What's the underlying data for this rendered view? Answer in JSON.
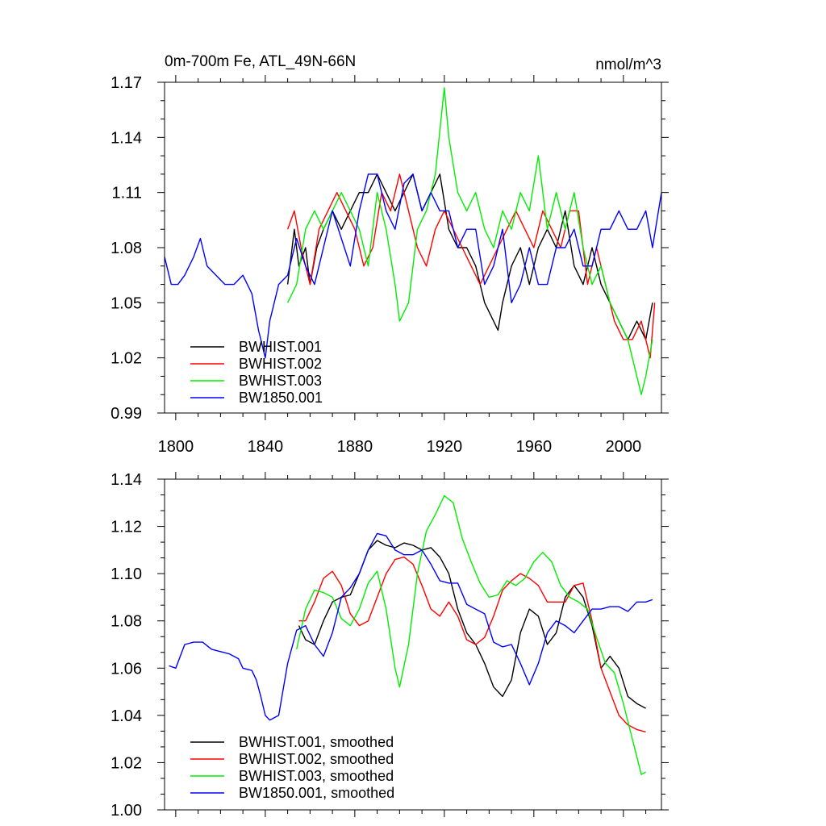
{
  "chart_data": [
    {
      "type": "line",
      "title": "0m-700m Fe, ATL_49N-66N",
      "units": "nmol/m^3",
      "xlim": [
        1795,
        2017
      ],
      "ylim": [
        0.99,
        1.17
      ],
      "xticks": [
        1800,
        1840,
        1880,
        1920,
        1960,
        2000
      ],
      "xtick_labels": [
        "1800",
        "1840",
        "1880",
        "1920",
        "1960",
        "2000"
      ],
      "yticks": [
        0.99,
        1.02,
        1.05,
        1.08,
        1.11,
        1.14,
        1.17
      ],
      "ytick_labels": [
        "0.99",
        "1.02",
        "1.05",
        "1.08",
        "1.11",
        "1.14",
        "1.17"
      ],
      "legend_position": "bottom-left",
      "series": [
        {
          "name": "BWHIST.001",
          "color": "#000000",
          "x": [
            1850,
            1853,
            1855,
            1858,
            1860,
            1863,
            1866,
            1870,
            1874,
            1878,
            1882,
            1886,
            1890,
            1894,
            1898,
            1902,
            1906,
            1910,
            1914,
            1918,
            1922,
            1926,
            1930,
            1934,
            1938,
            1942,
            1944,
            1946,
            1950,
            1954,
            1958,
            1962,
            1966,
            1970,
            1974,
            1978,
            1982,
            1986,
            1990,
            1994,
            1998,
            2002,
            2006,
            2010,
            2013
          ],
          "y": [
            1.06,
            1.09,
            1.07,
            1.08,
            1.06,
            1.08,
            1.09,
            1.1,
            1.09,
            1.1,
            1.11,
            1.11,
            1.12,
            1.11,
            1.1,
            1.11,
            1.12,
            1.1,
            1.11,
            1.12,
            1.09,
            1.08,
            1.08,
            1.07,
            1.05,
            1.04,
            1.035,
            1.05,
            1.07,
            1.08,
            1.06,
            1.08,
            1.09,
            1.08,
            1.1,
            1.07,
            1.06,
            1.08,
            1.06,
            1.05,
            1.04,
            1.03,
            1.04,
            1.03,
            1.05
          ]
        },
        {
          "name": "BWHIST.002",
          "color": "#ff0000",
          "x": [
            1850,
            1853,
            1856,
            1860,
            1864,
            1868,
            1872,
            1876,
            1880,
            1884,
            1888,
            1892,
            1896,
            1900,
            1904,
            1908,
            1912,
            1916,
            1920,
            1924,
            1928,
            1932,
            1936,
            1940,
            1944,
            1948,
            1952,
            1956,
            1960,
            1964,
            1968,
            1972,
            1976,
            1980,
            1984,
            1988,
            1992,
            1996,
            2000,
            2004,
            2008,
            2012,
            2014
          ],
          "y": [
            1.09,
            1.1,
            1.08,
            1.06,
            1.09,
            1.1,
            1.11,
            1.1,
            1.09,
            1.07,
            1.08,
            1.11,
            1.1,
            1.12,
            1.1,
            1.08,
            1.07,
            1.09,
            1.1,
            1.09,
            1.08,
            1.07,
            1.06,
            1.07,
            1.08,
            1.09,
            1.1,
            1.09,
            1.08,
            1.1,
            1.09,
            1.08,
            1.1,
            1.1,
            1.06,
            1.08,
            1.06,
            1.04,
            1.03,
            1.03,
            1.04,
            1.02,
            1.05
          ]
        },
        {
          "name": "BWHIST.003",
          "color": "#00ee00",
          "x": [
            1850,
            1854,
            1858,
            1862,
            1866,
            1870,
            1874,
            1878,
            1882,
            1886,
            1890,
            1894,
            1898,
            1900,
            1904,
            1908,
            1912,
            1916,
            1920,
            1922,
            1926,
            1930,
            1934,
            1938,
            1942,
            1946,
            1950,
            1954,
            1958,
            1962,
            1966,
            1970,
            1974,
            1978,
            1982,
            1986,
            1990,
            1994,
            1998,
            2002,
            2006,
            2008,
            2010,
            2013
          ],
          "y": [
            1.05,
            1.06,
            1.09,
            1.1,
            1.09,
            1.1,
            1.11,
            1.1,
            1.09,
            1.07,
            1.11,
            1.09,
            1.06,
            1.04,
            1.05,
            1.09,
            1.1,
            1.12,
            1.167,
            1.14,
            1.11,
            1.1,
            1.11,
            1.09,
            1.08,
            1.1,
            1.09,
            1.11,
            1.1,
            1.13,
            1.09,
            1.11,
            1.09,
            1.11,
            1.08,
            1.06,
            1.07,
            1.05,
            1.04,
            1.03,
            1.01,
            1.0,
            1.01,
            1.03
          ]
        },
        {
          "name": "BW1850.001",
          "color": "#0000ff",
          "x": [
            1795,
            1798,
            1801,
            1804,
            1808,
            1811,
            1814,
            1818,
            1822,
            1826,
            1830,
            1834,
            1837,
            1840,
            1842,
            1846,
            1850,
            1854,
            1858,
            1862,
            1866,
            1870,
            1874,
            1878,
            1882,
            1886,
            1890,
            1894,
            1898,
            1902,
            1906,
            1910,
            1914,
            1918,
            1922,
            1926,
            1930,
            1934,
            1938,
            1942,
            1946,
            1950,
            1954,
            1958,
            1962,
            1966,
            1970,
            1974,
            1978,
            1982,
            1986,
            1990,
            1994,
            1998,
            2002,
            2006,
            2010,
            2013,
            2017
          ],
          "y": [
            1.075,
            1.06,
            1.06,
            1.065,
            1.075,
            1.085,
            1.07,
            1.065,
            1.06,
            1.06,
            1.065,
            1.055,
            1.035,
            1.02,
            1.04,
            1.06,
            1.065,
            1.085,
            1.07,
            1.06,
            1.08,
            1.1,
            1.085,
            1.07,
            1.1,
            1.12,
            1.12,
            1.1,
            1.09,
            1.115,
            1.12,
            1.1,
            1.11,
            1.1,
            1.1,
            1.08,
            1.09,
            1.09,
            1.06,
            1.07,
            1.09,
            1.05,
            1.06,
            1.08,
            1.06,
            1.06,
            1.08,
            1.08,
            1.09,
            1.07,
            1.07,
            1.09,
            1.09,
            1.1,
            1.09,
            1.09,
            1.1,
            1.08,
            1.11
          ]
        }
      ]
    },
    {
      "type": "line",
      "xlim": [
        1795,
        2017
      ],
      "ylim": [
        1.0,
        1.14
      ],
      "yticks": [
        1.0,
        1.02,
        1.04,
        1.06,
        1.08,
        1.1,
        1.12,
        1.14
      ],
      "ytick_labels": [
        "1.00",
        "1.02",
        "1.04",
        "1.06",
        "1.08",
        "1.10",
        "1.12",
        "1.14"
      ],
      "legend_position": "bottom-left",
      "series": [
        {
          "name": "BWHIST.001, smoothed",
          "color": "#000000",
          "x": [
            1855,
            1858,
            1862,
            1866,
            1870,
            1874,
            1878,
            1882,
            1886,
            1890,
            1894,
            1898,
            1902,
            1906,
            1910,
            1914,
            1918,
            1922,
            1926,
            1930,
            1934,
            1938,
            1942,
            1946,
            1950,
            1954,
            1958,
            1962,
            1966,
            1970,
            1974,
            1978,
            1982,
            1986,
            1990,
            1994,
            1998,
            2002,
            2006,
            2010
          ],
          "y": [
            1.078,
            1.072,
            1.07,
            1.08,
            1.088,
            1.09,
            1.091,
            1.1,
            1.11,
            1.114,
            1.112,
            1.111,
            1.113,
            1.112,
            1.11,
            1.111,
            1.107,
            1.1,
            1.085,
            1.075,
            1.07,
            1.062,
            1.052,
            1.048,
            1.055,
            1.075,
            1.085,
            1.082,
            1.07,
            1.075,
            1.09,
            1.095,
            1.09,
            1.078,
            1.06,
            1.065,
            1.06,
            1.048,
            1.045,
            1.043
          ]
        },
        {
          "name": "BWHIST.002, smoothed",
          "color": "#ff0000",
          "x": [
            1855,
            1858,
            1862,
            1866,
            1870,
            1874,
            1878,
            1882,
            1886,
            1890,
            1894,
            1898,
            1902,
            1906,
            1910,
            1914,
            1918,
            1922,
            1926,
            1930,
            1934,
            1938,
            1942,
            1946,
            1950,
            1954,
            1958,
            1962,
            1966,
            1970,
            1974,
            1978,
            1982,
            1986,
            1990,
            1994,
            1998,
            2002,
            2006,
            2010
          ],
          "y": [
            1.08,
            1.08,
            1.088,
            1.098,
            1.101,
            1.095,
            1.083,
            1.078,
            1.08,
            1.09,
            1.1,
            1.106,
            1.107,
            1.104,
            1.095,
            1.085,
            1.082,
            1.088,
            1.082,
            1.072,
            1.07,
            1.073,
            1.082,
            1.093,
            1.097,
            1.1,
            1.098,
            1.095,
            1.088,
            1.088,
            1.088,
            1.095,
            1.096,
            1.08,
            1.06,
            1.05,
            1.04,
            1.036,
            1.034,
            1.033
          ]
        },
        {
          "name": "BWHIST.003, smoothed",
          "color": "#00ee00",
          "x": [
            1854,
            1858,
            1862,
            1866,
            1870,
            1874,
            1878,
            1882,
            1886,
            1890,
            1894,
            1898,
            1900,
            1904,
            1908,
            1912,
            1916,
            1920,
            1924,
            1928,
            1932,
            1936,
            1940,
            1944,
            1948,
            1952,
            1956,
            1960,
            1964,
            1968,
            1972,
            1976,
            1980,
            1984,
            1988,
            1992,
            1996,
            2000,
            2004,
            2008,
            2010
          ],
          "y": [
            1.068,
            1.085,
            1.093,
            1.092,
            1.09,
            1.081,
            1.078,
            1.085,
            1.096,
            1.101,
            1.085,
            1.06,
            1.052,
            1.07,
            1.1,
            1.118,
            1.125,
            1.133,
            1.13,
            1.115,
            1.105,
            1.096,
            1.09,
            1.091,
            1.097,
            1.095,
            1.098,
            1.105,
            1.109,
            1.105,
            1.095,
            1.09,
            1.088,
            1.085,
            1.073,
            1.062,
            1.058,
            1.045,
            1.03,
            1.015,
            1.016
          ]
        },
        {
          "name": "BW1850.001, smoothed",
          "color": "#0000ff",
          "x": [
            1797,
            1800,
            1804,
            1808,
            1812,
            1816,
            1820,
            1824,
            1828,
            1830,
            1834,
            1836,
            1838,
            1840,
            1842,
            1846,
            1850,
            1854,
            1858,
            1862,
            1866,
            1870,
            1874,
            1878,
            1882,
            1886,
            1890,
            1894,
            1898,
            1902,
            1906,
            1910,
            1914,
            1918,
            1922,
            1926,
            1930,
            1934,
            1938,
            1942,
            1946,
            1950,
            1954,
            1958,
            1962,
            1966,
            1970,
            1974,
            1978,
            1982,
            1986,
            1990,
            1994,
            1998,
            2002,
            2006,
            2010,
            2013
          ],
          "y": [
            1.061,
            1.06,
            1.07,
            1.071,
            1.071,
            1.068,
            1.067,
            1.066,
            1.064,
            1.06,
            1.059,
            1.055,
            1.048,
            1.04,
            1.038,
            1.04,
            1.062,
            1.076,
            1.078,
            1.07,
            1.065,
            1.075,
            1.09,
            1.094,
            1.1,
            1.11,
            1.117,
            1.116,
            1.11,
            1.108,
            1.108,
            1.11,
            1.104,
            1.097,
            1.096,
            1.096,
            1.087,
            1.085,
            1.083,
            1.071,
            1.069,
            1.07,
            1.062,
            1.053,
            1.062,
            1.075,
            1.08,
            1.078,
            1.075,
            1.08,
            1.085,
            1.085,
            1.086,
            1.086,
            1.084,
            1.088,
            1.088,
            1.089
          ]
        }
      ]
    }
  ]
}
